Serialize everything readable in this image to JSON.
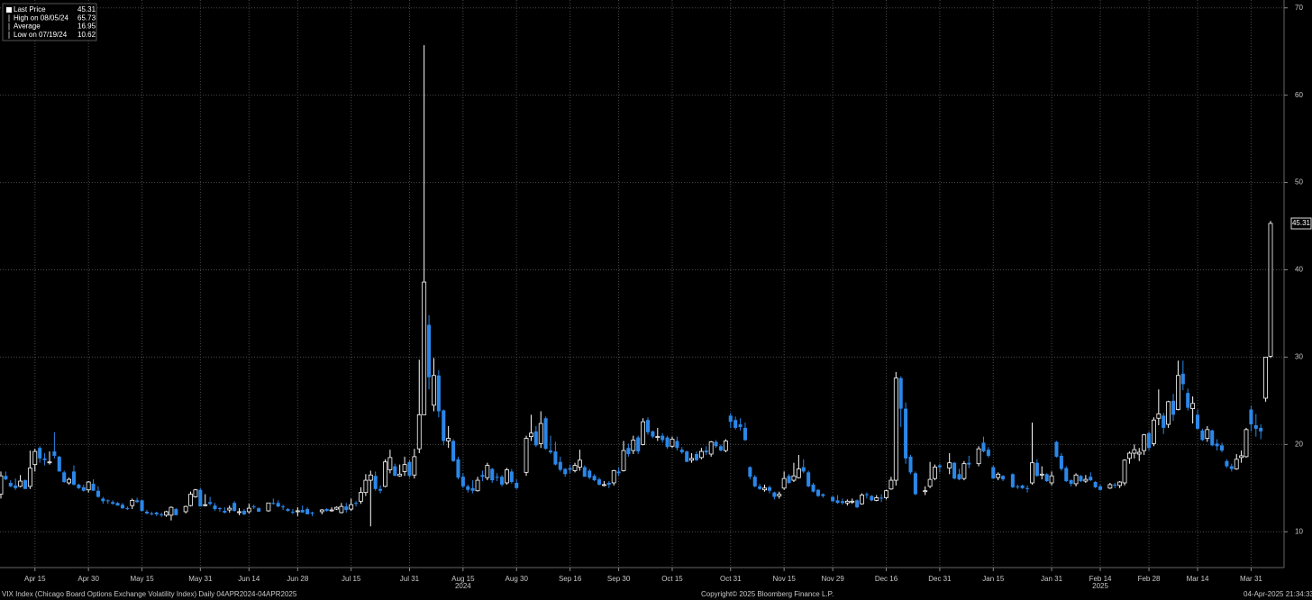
{
  "chart_data": {
    "type": "candlestick",
    "legend": {
      "items": [
        {
          "label": "Last Price",
          "value": 45.31
        },
        {
          "label": "High on 08/05/24",
          "value": 65.73
        },
        {
          "label": "Average",
          "value": 16.95
        },
        {
          "label": "Low on 07/19/24",
          "value": 10.62
        }
      ]
    },
    "footnote": "VIX Index (Chicago Board Options Exchange Volatility Index)  Daily 04APR2024-04APR2025",
    "copyright": "Copyright© 2025 Bloomberg Finance L.P.",
    "timestamp": "04-Apr-2025 21:34:33",
    "year_labels": [
      {
        "label": "2024",
        "category": "Aug 15"
      },
      {
        "label": "2025",
        "category": "Feb 14"
      }
    ],
    "up_color": "#ffffff",
    "down_color": "#2b87e8",
    "grid": true,
    "ylim": [
      5.9,
      70.9
    ],
    "yticks": [
      10,
      20,
      30,
      40,
      50,
      60,
      70
    ],
    "categories": [
      null,
      null,
      null,
      null,
      null,
      null,
      null,
      "Apr 15",
      null,
      null,
      null,
      null,
      null,
      null,
      null,
      null,
      null,
      null,
      "Apr 30",
      null,
      null,
      null,
      null,
      null,
      null,
      null,
      null,
      null,
      null,
      "May 15",
      null,
      null,
      null,
      null,
      null,
      null,
      null,
      null,
      null,
      null,
      null,
      "May 31",
      null,
      null,
      null,
      null,
      null,
      null,
      null,
      null,
      null,
      "Jun 14",
      null,
      null,
      null,
      null,
      null,
      null,
      null,
      null,
      null,
      "Jun 28",
      null,
      null,
      null,
      null,
      null,
      null,
      null,
      null,
      null,
      null,
      "Jul 15",
      null,
      null,
      null,
      null,
      null,
      null,
      null,
      null,
      null,
      null,
      null,
      "Jul 31",
      null,
      null,
      null,
      null,
      null,
      null,
      null,
      null,
      null,
      null,
      "Aug 15",
      null,
      null,
      null,
      null,
      null,
      null,
      null,
      null,
      null,
      null,
      "Aug 30",
      null,
      null,
      null,
      null,
      null,
      null,
      null,
      null,
      null,
      null,
      "Sep 16",
      null,
      null,
      null,
      null,
      null,
      null,
      null,
      null,
      null,
      "Sep 30",
      null,
      null,
      null,
      null,
      null,
      null,
      null,
      null,
      null,
      null,
      "Oct 15",
      null,
      null,
      null,
      null,
      null,
      null,
      null,
      null,
      null,
      null,
      null,
      "Oct 31",
      null,
      null,
      null,
      null,
      null,
      null,
      null,
      null,
      null,
      null,
      "Nov 15",
      null,
      null,
      null,
      null,
      null,
      null,
      null,
      null,
      null,
      "Nov 29",
      null,
      null,
      null,
      null,
      null,
      null,
      null,
      null,
      null,
      null,
      "Dec 16",
      null,
      null,
      null,
      null,
      null,
      null,
      null,
      null,
      null,
      null,
      "Dec 31",
      null,
      null,
      null,
      null,
      null,
      null,
      null,
      null,
      null,
      null,
      "Jan 15",
      null,
      null,
      null,
      null,
      null,
      null,
      null,
      null,
      null,
      null,
      null,
      "Jan 31",
      null,
      null,
      null,
      null,
      null,
      null,
      null,
      null,
      null,
      "Feb 14",
      null,
      null,
      null,
      null,
      null,
      null,
      null,
      null,
      null,
      "Feb 28",
      null,
      null,
      null,
      null,
      null,
      null,
      null,
      null,
      null,
      "Mar 14",
      null,
      null,
      null,
      null,
      null,
      null,
      null,
      null,
      null,
      null,
      "Mar 31",
      null,
      null,
      null,
      null
    ],
    "open": [
      14.3,
      16.4,
      15.6,
      15.3,
      15.2,
      15.9,
      15.2,
      17.7,
      19.6,
      18.4,
      17.9,
      19.2,
      18.6,
      16.8,
      15.6,
      16.9,
      15.4,
      15.1,
      14.8,
      15.5,
      14.7,
      13.8,
      13.6,
      13.4,
      13.3,
      13.1,
      12.7,
      13.0,
      13.6,
      13.6,
      12.3,
      12.1,
      12.2,
      12.0,
      11.9,
      11.9,
      12.6,
      null,
      12.3,
      13.0,
      14.0,
      14.8,
      13.0,
      13.4,
      13.0,
      12.7,
      12.4,
      12.5,
      13.3,
      12.2,
      12.4,
      12.3,
      12.9,
      12.7,
      null,
      12.4,
      13.3,
      13.3,
      12.9,
      12.6,
      12.3,
      12.3,
      12.5,
      12.6,
      12.2,
      null,
      12.3,
      12.6,
      12.4,
      12.6,
      12.2,
      12.9,
      12.6,
      13.3,
      13.5,
      14.5,
      15.9,
      16.4,
      14.9,
      15.2,
      17.1,
      17.5,
      16.4,
      16.9,
      18.0,
      16.5,
      19.5,
      23.4,
      33.7,
      24.5,
      27.9,
      23.9,
      20.4,
      20.4,
      18.3,
      16.3,
      15.2,
      15.0,
      14.7,
      16.5,
      16.2,
      17.2,
      16.3,
      16.3,
      15.6,
      16.9,
      15.6,
      null,
      16.8,
      20.9,
      21.5,
      20.1,
      23.0,
      19.3,
      19.2,
      18.0,
      17.2,
      17.3,
      17.0,
      17.4,
      17.4,
      17.0,
      16.4,
      16.0,
      15.3,
      15.6,
      15.6,
      16.9,
      17.0,
      19.6,
      19.3,
      20.8,
      20.0,
      22.8,
      21.5,
      20.8,
      21.0,
      20.8,
      19.8,
      20.4,
      19.4,
      19.2,
      18.2,
      18.9,
      18.5,
      19.3,
      18.9,
      20.3,
      19.8,
      19.3,
      23.3,
      22.8,
      22.3,
      21.9,
      17.4,
      16.3,
      15.2,
      14.8,
      15.1,
      14.5,
      14.1,
      15.0,
      16.4,
      15.9,
      16.2,
      17.4,
      16.8,
      15.4,
      14.8,
      14.3,
      null,
      14.0,
      13.6,
      13.5,
      13.3,
      13.4,
      13.6,
      13.2,
      14.3,
      14.1,
      13.6,
      13.9,
      13.9,
      14.9,
      15.9,
      27.6,
      24.1,
      18.6,
      16.7,
      null,
      14.6,
      15.2,
      16.1,
      17.6,
      null,
      17.3,
      17.9,
      16.6,
      16.1,
      17.9,
      null,
      17.8,
      20.2,
      19.4,
      17.4,
      16.2,
      16.4,
      null,
      16.6,
      15.2,
      15.3,
      15.0,
      15.6,
      17.9,
      16.6,
      16.6,
      15.6,
      20.3,
      18.7,
      17.3,
      15.9,
      15.5,
      16.4,
      15.8,
      16.3,
      15.7,
      15.2,
      null,
      15.0,
      15.4,
      15.3,
      15.6,
      18.4,
      19.0,
      18.9,
      19.3,
      21.3,
      20.1,
      23.0,
      23.3,
      22.3,
      25.0,
      24.0,
      28.1,
      25.9,
      24.1,
      23.4,
      21.6,
      20.7,
      21.6,
      20.1,
      19.9,
      18.1,
      17.5,
      17.2,
      18.5,
      18.6,
      24.0,
      22.2,
      21.9,
      25.3,
      30.1
    ],
    "high": [
      16.9,
      16.9,
      15.9,
      16.1,
      16.5,
      16.0,
      19.3,
      19.5,
      19.8,
      19.0,
      19.2,
      21.4,
      18.7,
      17.0,
      16.2,
      17.6,
      15.5,
      15.4,
      15.8,
      16.0,
      15.2,
      14.0,
      13.7,
      13.6,
      13.4,
      13.3,
      12.9,
      13.8,
      13.9,
      13.7,
      12.5,
      12.3,
      12.3,
      12.2,
      12.4,
      12.9,
      12.7,
      null,
      13.0,
      14.6,
      14.9,
      15.0,
      14.3,
      14.0,
      13.3,
      12.8,
      12.8,
      13.0,
      13.5,
      12.7,
      12.6,
      13.2,
      13.1,
      12.8,
      null,
      13.3,
      13.8,
      13.6,
      13.1,
      12.7,
      12.6,
      12.8,
      13.0,
      12.8,
      12.3,
      null,
      12.6,
      12.7,
      12.8,
      12.9,
      13.3,
      13.3,
      13.8,
      13.5,
      15.1,
      16.6,
      17.0,
      16.9,
      15.3,
      18.3,
      19.4,
      17.8,
      17.7,
      18.6,
      18.2,
      19.5,
      29.7,
      65.73,
      34.8,
      29.9,
      28.5,
      24.0,
      22.1,
      20.6,
      18.6,
      16.7,
      15.4,
      15.9,
      16.3,
      17.0,
      17.9,
      17.3,
      16.7,
      16.5,
      17.3,
      17.2,
      16.0,
      null,
      21.0,
      23.4,
      22.1,
      23.8,
      23.2,
      21.0,
      20.3,
      18.6,
      17.3,
      17.7,
      17.9,
      19.4,
      17.6,
      17.2,
      16.6,
      16.2,
      15.8,
      15.8,
      17.1,
      17.4,
      20.4,
      20.1,
      21.0,
      21.0,
      23.0,
      23.1,
      21.6,
      21.9,
      21.3,
      21.0,
      20.9,
      20.9,
      19.7,
      19.3,
      19.0,
      19.2,
      19.6,
      19.8,
      20.4,
      20.5,
      20.0,
      20.6,
      23.6,
      23.2,
      23.0,
      22.5,
      17.5,
      16.5,
      15.5,
      15.4,
      15.3,
      14.6,
      14.6,
      16.9,
      16.6,
      17.9,
      18.8,
      18.3,
      17.0,
      15.6,
      14.9,
      14.4,
      null,
      14.1,
      14.2,
      13.8,
      13.7,
      13.8,
      13.7,
      14.4,
      14.5,
      14.2,
      14.2,
      14.3,
      14.8,
      16.3,
      28.3,
      27.8,
      24.8,
      18.8,
      16.9,
      null,
      15.2,
      18.0,
      17.7,
      17.8,
      null,
      19.0,
      18.0,
      17.2,
      18.1,
      18.7,
      null,
      19.8,
      20.9,
      19.7,
      17.6,
      16.8,
      16.5,
      null,
      16.7,
      15.4,
      15.4,
      15.3,
      22.5,
      18.3,
      17.5,
      16.7,
      16.9,
      20.4,
      19.0,
      17.5,
      16.0,
      16.7,
      16.5,
      16.5,
      16.8,
      15.8,
      15.4,
      null,
      15.6,
      15.6,
      15.8,
      18.3,
      19.2,
      20.0,
      19.6,
      21.2,
      21.5,
      23.1,
      26.3,
      23.6,
      25.0,
      25.8,
      29.6,
      29.6,
      26.4,
      25.5,
      24.0,
      21.8,
      22.1,
      21.7,
      20.6,
      20.2,
      18.3,
      17.8,
      18.9,
      19.3,
      21.9,
      24.4,
      23.5,
      22.3,
      30.0,
      45.6
    ],
    "low": [
      13.8,
      15.9,
      15.1,
      14.8,
      15.1,
      14.9,
      14.9,
      16.9,
      17.9,
      17.6,
      17.7,
      18.4,
      16.9,
      15.6,
      15.4,
      15.3,
      14.9,
      14.6,
      14.5,
      14.7,
      13.9,
      13.2,
      13.2,
      13.1,
      13.0,
      12.6,
      12.5,
      12.6,
      13.3,
      12.3,
      12.0,
      11.9,
      11.8,
      11.7,
      11.7,
      11.3,
      11.9,
      null,
      12.1,
      12.9,
      13.9,
      12.9,
      12.9,
      13.0,
      12.4,
      12.3,
      12.1,
      12.2,
      12.3,
      11.9,
      11.9,
      12.1,
      12.6,
      12.3,
      null,
      12.3,
      13.1,
      12.8,
      12.5,
      12.3,
      12.0,
      11.8,
      12.2,
      12.0,
      11.8,
      null,
      12.0,
      12.3,
      12.3,
      12.5,
      12.1,
      12.2,
      12.4,
      12.9,
      13.2,
      14.1,
      10.62,
      14.7,
      14.4,
      15.1,
      16.7,
      16.4,
      16.3,
      16.4,
      16.2,
      16.1,
      19.0,
      23.4,
      26.3,
      23.8,
      23.1,
      19.9,
      19.6,
      18.0,
      16.0,
      15.0,
      14.5,
      14.4,
      14.6,
      15.8,
      15.9,
      15.6,
      15.8,
      15.2,
      15.4,
      15.5,
      14.9,
      null,
      16.4,
      20.4,
      19.7,
      19.6,
      19.4,
      18.9,
      17.6,
      16.9,
      16.3,
      16.7,
      16.8,
      17.0,
      16.3,
      16.0,
      15.8,
      15.3,
      15.2,
      15.0,
      15.3,
      16.4,
      16.9,
      18.6,
      18.9,
      18.9,
      19.9,
      21.1,
      20.7,
      20.4,
      20.2,
      19.5,
      19.6,
      19.3,
      18.9,
      18.0,
      17.9,
      18.1,
      18.3,
      18.8,
      18.6,
      19.6,
      19.2,
      19.1,
      21.9,
      21.7,
      21.6,
      20.4,
      16.0,
      15.1,
      14.8,
      14.6,
      14.4,
      13.7,
      13.8,
      14.8,
      15.5,
      15.7,
      16.1,
      16.7,
      15.1,
      14.5,
      14.0,
      13.9,
      null,
      13.4,
      13.2,
      13.1,
      13.0,
      13.2,
      12.7,
      13.1,
      13.8,
      13.5,
      13.5,
      13.4,
      13.7,
      14.8,
      15.3,
      22.0,
      17.8,
      16.6,
      14.2,
      null,
      14.2,
      15.0,
      15.9,
      16.8,
      null,
      16.6,
      16.0,
      15.9,
      15.9,
      17.3,
      null,
      17.5,
      19.1,
      18.5,
      16.1,
      15.9,
      15.8,
      null,
      15.0,
      14.9,
      14.9,
      14.5,
      15.4,
      16.3,
      16.0,
      15.7,
      15.3,
      18.5,
      17.0,
      15.7,
      15.2,
      15.2,
      15.7,
      15.6,
      15.8,
      15.0,
      14.7,
      null,
      14.9,
      15.0,
      15.0,
      15.3,
      17.8,
      18.4,
      18.1,
      18.8,
      19.3,
      19.8,
      22.2,
      21.2,
      21.9,
      22.7,
      23.9,
      26.2,
      23.9,
      22.4,
      21.7,
      20.4,
      20.3,
      19.8,
      19.3,
      19.1,
      17.3,
      16.9,
      17.1,
      17.9,
      18.5,
      21.5,
      20.9,
      20.6,
      24.9,
      29.9
    ],
    "close": [
      16.4,
      16.0,
      15.2,
      15.0,
      15.8,
      14.9,
      17.3,
      19.2,
      18.4,
      18.2,
      18.0,
      18.7,
      16.9,
      15.7,
      16.0,
      15.4,
      15.0,
      14.7,
      15.7,
      14.7,
      14.0,
      13.5,
      13.5,
      13.2,
      13.0,
      12.7,
      12.6,
      13.6,
      13.4,
      12.4,
      12.1,
      12.0,
      12.0,
      11.9,
      12.3,
      12.8,
      11.9,
      null,
      12.9,
      14.3,
      14.8,
      12.9,
      13.1,
      13.2,
      12.6,
      12.6,
      12.2,
      12.7,
      12.4,
      12.3,
      12.0,
      12.7,
      12.8,
      12.3,
      null,
      13.3,
      13.2,
      12.9,
      12.8,
      12.4,
      12.2,
      12.4,
      12.2,
      12.0,
      12.1,
      null,
      12.5,
      12.4,
      12.5,
      12.8,
      12.9,
      12.5,
      13.1,
      13.2,
      14.5,
      15.9,
      16.5,
      14.9,
      14.7,
      18.0,
      18.5,
      16.4,
      16.6,
      17.7,
      16.4,
      18.6,
      23.4,
      38.6,
      27.7,
      27.9,
      23.8,
      20.4,
      20.7,
      18.1,
      16.2,
      15.2,
      14.8,
      14.7,
      15.9,
      16.3,
      17.6,
      15.9,
      16.2,
      15.4,
      17.1,
      15.7,
      15.0,
      null,
      20.7,
      21.3,
      19.9,
      22.4,
      19.5,
      19.1,
      17.7,
      17.1,
      16.6,
      17.1,
      17.6,
      18.2,
      16.3,
      16.2,
      15.9,
      15.4,
      15.4,
      15.4,
      17.0,
      16.7,
      19.3,
      18.9,
      20.5,
      19.2,
      22.6,
      21.4,
      20.9,
      20.9,
      20.5,
      19.7,
      20.6,
      19.6,
      19.1,
      18.0,
      18.4,
      18.2,
      19.2,
      19.1,
      20.3,
      19.8,
      19.3,
      20.4,
      22.6,
      21.9,
      22.0,
      20.5,
      16.3,
      15.2,
      14.9,
      15.0,
      14.7,
      14.0,
      14.3,
      16.1,
      15.6,
      16.4,
      17.2,
      16.9,
      15.2,
      14.6,
      14.1,
      14.1,
      null,
      13.5,
      13.3,
      13.3,
      13.5,
      13.5,
      12.8,
      14.2,
      14.2,
      13.6,
      13.9,
      13.8,
      14.7,
      15.9,
      27.6,
      24.1,
      18.4,
      16.8,
      14.3,
      null,
      14.7,
      16.0,
      17.4,
      17.4,
      null,
      17.9,
      16.1,
      16.0,
      17.8,
      17.7,
      null,
      19.5,
      19.2,
      18.7,
      16.1,
      16.6,
      16.0,
      null,
      15.1,
      15.1,
      15.0,
      14.9,
      17.9,
      16.4,
      16.6,
      15.8,
      16.4,
      18.6,
      17.2,
      15.8,
      15.5,
      16.5,
      15.8,
      16.0,
      15.9,
      15.1,
      14.8,
      null,
      15.4,
      15.3,
      15.7,
      18.2,
      19.0,
      19.4,
      19.1,
      21.1,
      19.6,
      22.8,
      23.5,
      21.9,
      24.9,
      23.4,
      27.9,
      26.9,
      24.2,
      24.7,
      21.8,
      20.5,
      21.7,
      19.9,
      19.8,
      19.3,
      17.5,
      17.2,
      18.3,
      18.7,
      21.7,
      22.3,
      21.8,
      21.5,
      30.0,
      45.31
    ]
  }
}
